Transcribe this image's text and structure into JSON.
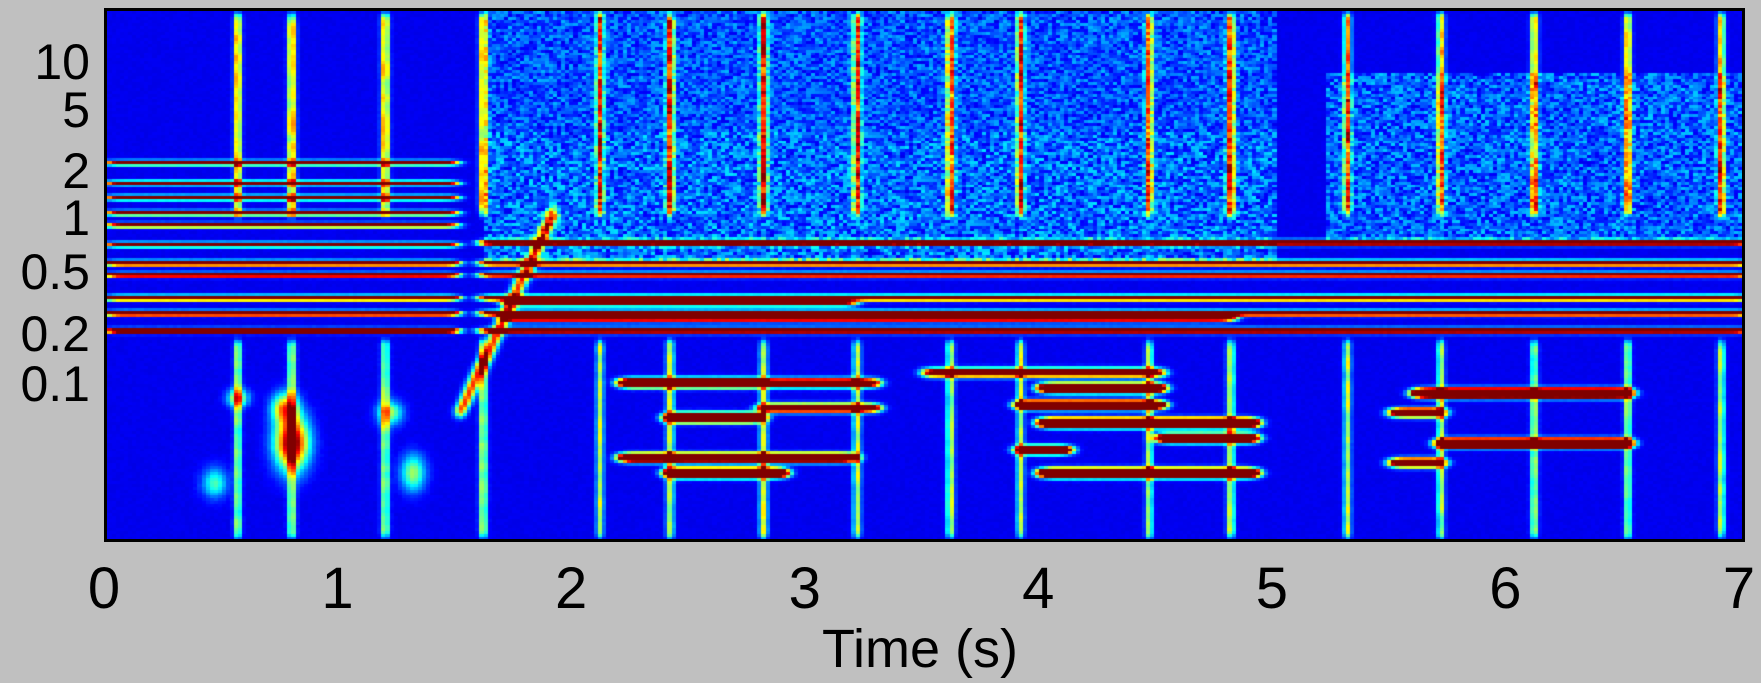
{
  "chart_data": {
    "type": "heatmap",
    "title": "",
    "xlabel": "Time (s)",
    "ylabel": "",
    "x_ticks": [
      "0",
      "1",
      "2",
      "3",
      "4",
      "5",
      "6",
      "7"
    ],
    "y_ticks": [
      "10",
      "5",
      "2",
      "1",
      "0.5",
      "0.2",
      "0.1"
    ],
    "xlim": [
      0,
      7
    ],
    "colormap": "jet",
    "colors": {
      "background": "#c0c0c0",
      "low": "#00008f",
      "mid": "#00ffff",
      "high": "#ff0000"
    }
  }
}
